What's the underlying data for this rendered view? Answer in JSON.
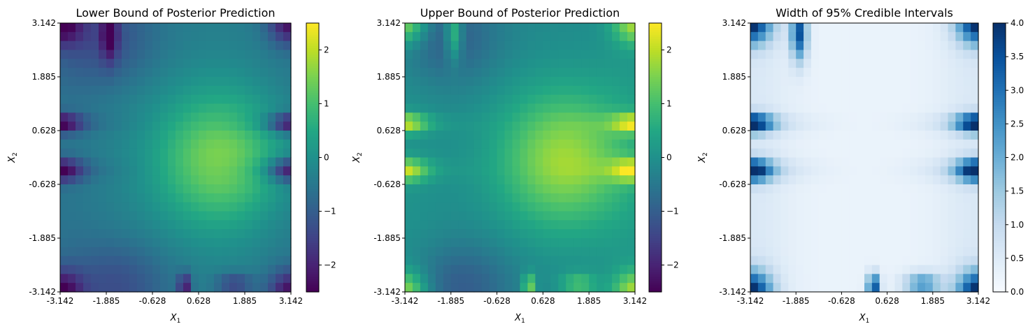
{
  "chart_data": [
    {
      "type": "heatmap",
      "title": "Lower Bound of Posterior Prediction",
      "xlabel": "X",
      "xlabel_sub": "1",
      "ylabel": "X",
      "ylabel_sub": "2",
      "xticks": [
        "-3.142",
        "-1.885",
        "-0.628",
        "0.628",
        "1.885",
        "3.142"
      ],
      "yticks": [
        "3.142",
        "1.885",
        "0.628",
        "-0.628",
        "-1.885",
        "-3.142"
      ],
      "xlim": [
        -3.142,
        3.142
      ],
      "ylim": [
        -3.142,
        3.142
      ],
      "colormap": "viridis",
      "colorbar": {
        "min": -2.5,
        "max": 2.5,
        "ticks": [
          -2,
          -1,
          0,
          1,
          2
        ],
        "tick_labels": [
          "−2",
          "−1",
          "0",
          "1",
          "2"
        ]
      }
    },
    {
      "type": "heatmap",
      "title": "Upper Bound of Posterior Prediction",
      "xlabel": "X",
      "xlabel_sub": "1",
      "ylabel": "X",
      "ylabel_sub": "2",
      "xticks": [
        "-3.142",
        "-1.885",
        "-0.628",
        "0.628",
        "1.885",
        "3.142"
      ],
      "yticks": [
        "3.142",
        "1.885",
        "0.628",
        "-0.628",
        "-1.885",
        "-3.142"
      ],
      "xlim": [
        -3.142,
        3.142
      ],
      "ylim": [
        -3.142,
        3.142
      ],
      "colormap": "viridis",
      "colorbar": {
        "min": -2.5,
        "max": 2.5,
        "ticks": [
          -2,
          -1,
          0,
          1,
          2
        ],
        "tick_labels": [
          "−2",
          "−1",
          "0",
          "1",
          "2"
        ]
      }
    },
    {
      "type": "heatmap",
      "title": "Width of 95% Credible Intervals",
      "xlabel": "X",
      "xlabel_sub": "1",
      "ylabel": "X",
      "ylabel_sub": "2",
      "xticks": [
        "-3.142",
        "-1.885",
        "-0.628",
        "0.628",
        "1.885",
        "3.142"
      ],
      "yticks": [
        "3.142",
        "1.885",
        "0.628",
        "-0.628",
        "-1.885",
        "-3.142"
      ],
      "xlim": [
        -3.142,
        3.142
      ],
      "ylim": [
        -3.142,
        3.142
      ],
      "colormap": "blues",
      "colorbar": {
        "min": 0,
        "max": 4,
        "ticks": [
          0,
          0.5,
          1,
          1.5,
          2,
          2.5,
          3,
          3.5,
          4
        ],
        "tick_labels": [
          "0.0",
          "0.5",
          "1.0",
          "1.5",
          "2.0",
          "2.5",
          "3.0",
          "3.5",
          "4.0"
        ]
      }
    }
  ]
}
